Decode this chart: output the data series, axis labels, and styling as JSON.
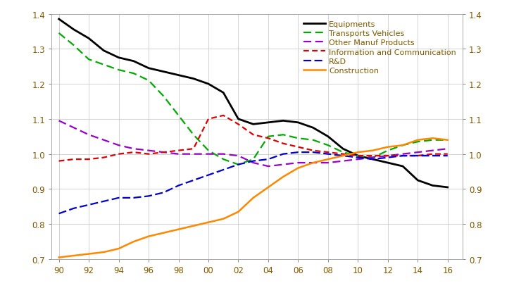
{
  "xlabels": [
    "90",
    "92",
    "94",
    "96",
    "98",
    "00",
    "02",
    "04",
    "06",
    "08",
    "10",
    "12",
    "14",
    "16"
  ],
  "xticks": [
    90,
    92,
    94,
    96,
    98,
    100,
    102,
    104,
    106,
    108,
    110,
    112,
    114,
    116
  ],
  "ylim": [
    0.7,
    1.4
  ],
  "yticks": [
    0.7,
    0.8,
    0.9,
    1.0,
    1.1,
    1.2,
    1.3,
    1.4
  ],
  "equipments": [
    1.385,
    1.355,
    1.33,
    1.295,
    1.275,
    1.265,
    1.245,
    1.235,
    1.225,
    1.215,
    1.2,
    1.175,
    1.1,
    1.085,
    1.09,
    1.095,
    1.09,
    1.075,
    1.05,
    1.015,
    0.995,
    0.985,
    0.975,
    0.965,
    0.925,
    0.91,
    0.905
  ],
  "transports_vehicles": [
    1.345,
    1.31,
    1.27,
    1.255,
    1.24,
    1.23,
    1.21,
    1.165,
    1.11,
    1.055,
    1.01,
    0.985,
    0.97,
    0.985,
    1.05,
    1.055,
    1.045,
    1.04,
    1.025,
    1.005,
    0.995,
    0.99,
    1.01,
    1.025,
    1.035,
    1.04,
    1.04
  ],
  "other_manuf_products": [
    1.095,
    1.075,
    1.055,
    1.04,
    1.025,
    1.015,
    1.01,
    1.005,
    1.0,
    1.0,
    1.0,
    1.0,
    0.995,
    0.975,
    0.965,
    0.97,
    0.975,
    0.975,
    0.975,
    0.98,
    0.985,
    0.99,
    0.995,
    1.0,
    1.005,
    1.01,
    1.015
  ],
  "information_communication": [
    0.98,
    0.985,
    0.985,
    0.99,
    1.0,
    1.005,
    1.0,
    1.005,
    1.01,
    1.015,
    1.1,
    1.11,
    1.085,
    1.055,
    1.045,
    1.03,
    1.02,
    1.01,
    1.005,
    1.0,
    0.995,
    0.995,
    0.995,
    0.995,
    0.995,
    1.0,
    1.0
  ],
  "rd": [
    0.83,
    0.845,
    0.855,
    0.865,
    0.875,
    0.875,
    0.88,
    0.89,
    0.91,
    0.925,
    0.94,
    0.955,
    0.97,
    0.98,
    0.985,
    1.0,
    1.005,
    1.005,
    1.0,
    0.995,
    0.99,
    0.985,
    0.99,
    0.995,
    0.995,
    0.995,
    0.995
  ],
  "construction": [
    0.705,
    0.71,
    0.715,
    0.72,
    0.73,
    0.75,
    0.765,
    0.775,
    0.785,
    0.795,
    0.805,
    0.815,
    0.835,
    0.875,
    0.905,
    0.935,
    0.96,
    0.975,
    0.985,
    0.995,
    1.005,
    1.01,
    1.02,
    1.025,
    1.04,
    1.045,
    1.04
  ],
  "color_equipments": "#000000",
  "color_transports": "#00aa00",
  "color_other_manuf": "#9900cc",
  "color_info_comm": "#dd0000",
  "color_rd": "#0000cc",
  "color_construction": "#ff8800",
  "tick_color": "#7f5a00",
  "legend_labels": [
    "Equipments",
    "Transports Vehicles",
    "Other Manuf Products",
    "Information and Communication",
    "R&D",
    "Construction"
  ]
}
